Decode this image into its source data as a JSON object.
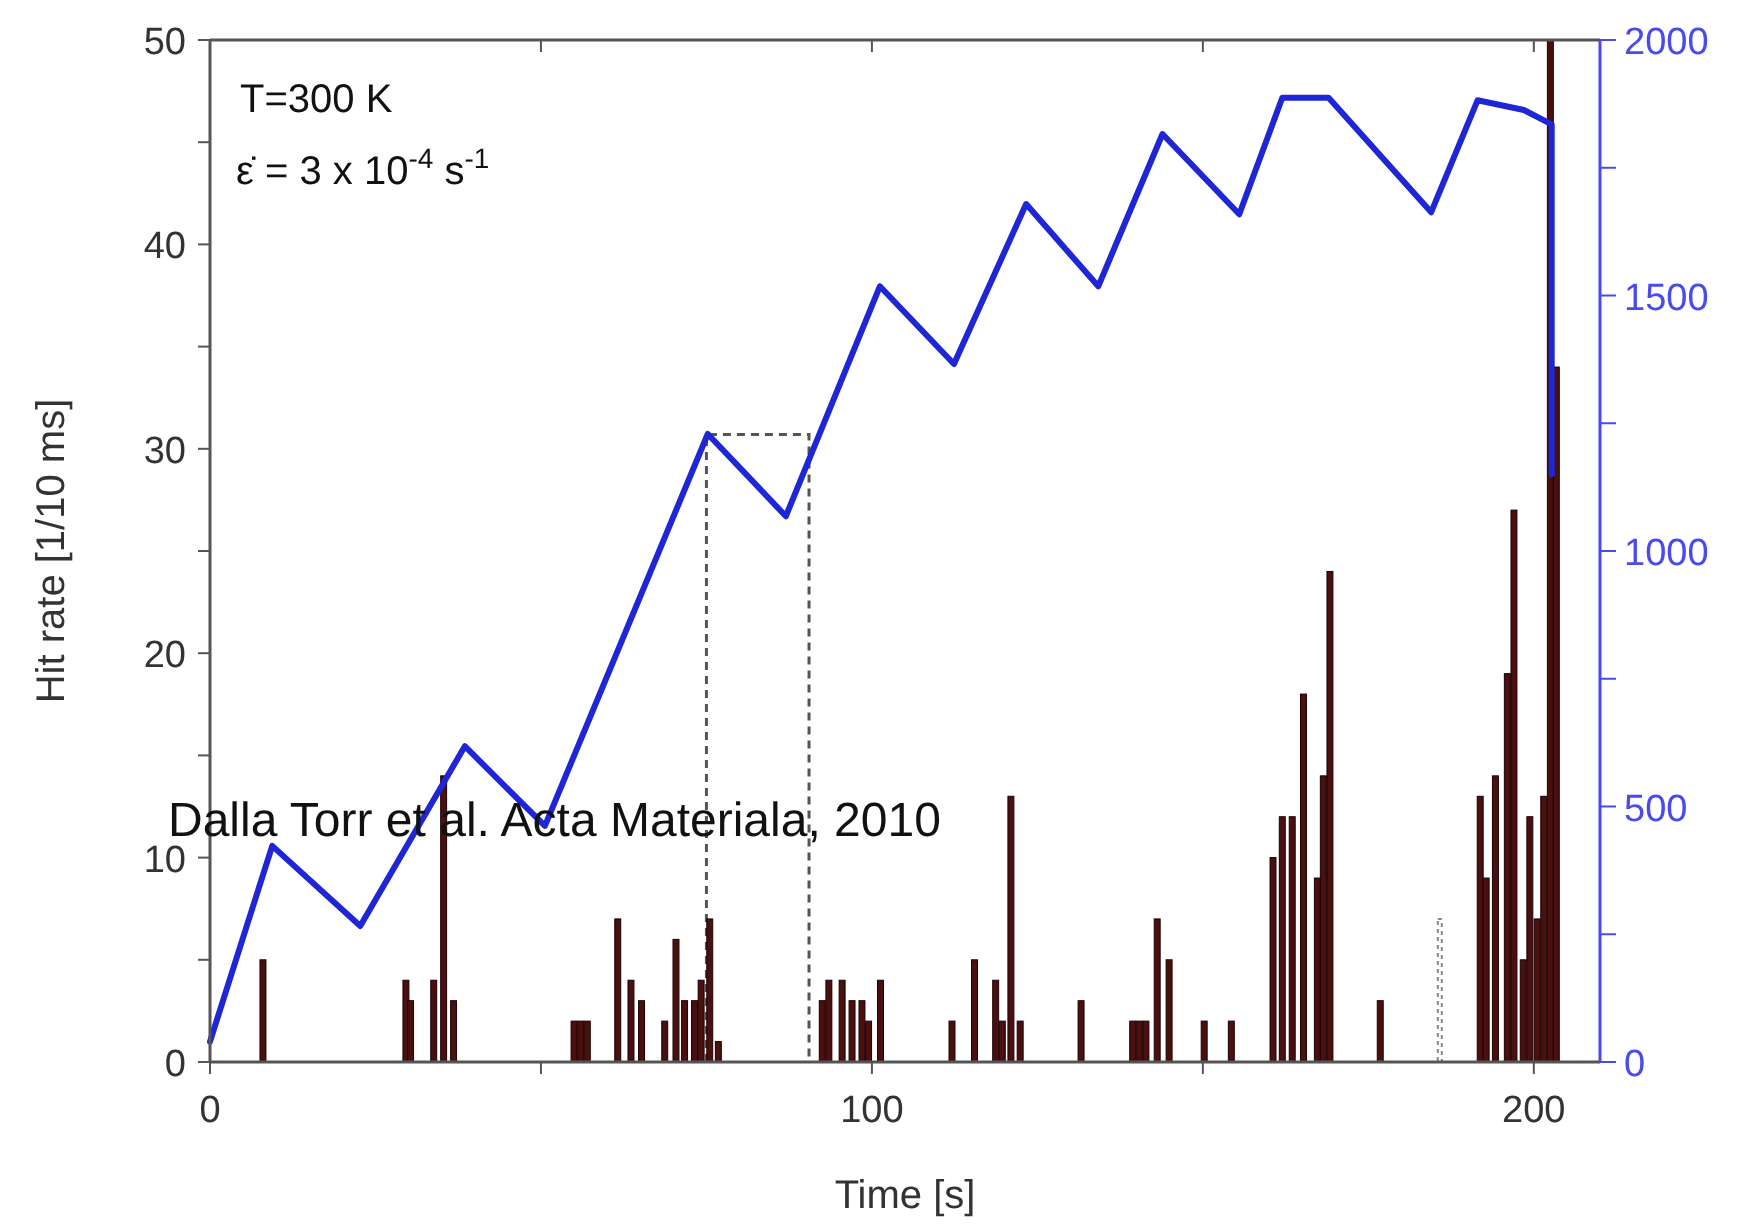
{
  "chart_data": {
    "type": "bar",
    "xlabel": "Time [s]",
    "ylabel": "Hit rate [1/10 ms]",
    "xlim": [
      0,
      210
    ],
    "xticks": [
      0,
      {
        "value": 50,
        "label": null
      },
      100,
      {
        "value": 150,
        "label": null
      },
      200
    ],
    "ylim": [
      0,
      50
    ],
    "yticks": [
      0,
      {
        "value": 5,
        "label": null
      },
      10,
      {
        "value": 15,
        "label": null
      },
      20,
      {
        "value": 25,
        "label": null
      },
      30,
      {
        "value": 35,
        "label": null
      },
      40,
      {
        "value": 45,
        "label": null
      },
      50
    ],
    "y2lim": [
      0,
      2000
    ],
    "y2ticks": [
      0,
      {
        "value": 250,
        "label": null
      },
      500,
      {
        "value": 750,
        "label": null
      },
      1000,
      {
        "value": 1250,
        "label": null
      },
      1500,
      {
        "value": 1750,
        "label": null
      },
      2000
    ],
    "grid": false,
    "series": [
      {
        "color": "#4a1010",
        "x": [
          8,
          29.6,
          30.3,
          33.8,
          35.3,
          36.8,
          55,
          56,
          57,
          61.6,
          63.6,
          65.2,
          68.7,
          70.4,
          71.7,
          73.2,
          74.2,
          75.5,
          76.8,
          92.5,
          93.5,
          95.5,
          97,
          98.5,
          99.5,
          101.3,
          112.1,
          115.5,
          118.7,
          119.7,
          121,
          122.4,
          131.6,
          139.4,
          140.4,
          141.4,
          143.1,
          144.9,
          150.2,
          154.3,
          160.6,
          162,
          163.5,
          165.2,
          167.3,
          168.2,
          169.2,
          176.8,
          191.9,
          192.8,
          194.2,
          196,
          197,
          198.4,
          199.4,
          200.5,
          201.5,
          202.5,
          203.4
        ],
        "values": [
          5,
          4,
          3,
          4,
          14,
          3,
          2,
          2,
          2,
          7,
          4,
          3,
          2,
          6,
          3,
          3,
          4,
          7,
          1,
          3,
          4,
          4,
          3,
          3,
          2,
          4,
          2,
          5,
          4,
          2,
          13,
          2,
          3,
          2,
          2,
          2,
          7,
          5,
          2,
          2,
          10,
          12,
          12,
          18,
          9,
          14,
          24,
          3,
          13,
          9,
          14,
          19,
          27,
          5,
          12,
          7,
          13,
          50,
          34
        ]
      },
      {
        "type": "bar",
        "color": "#888888",
        "line_style": "dotted",
        "x": [
          185.8
        ],
        "values": [
          7
        ]
      },
      {
        "type": "line",
        "axis": "y2",
        "color": "#1f26d6",
        "x": [
          0,
          9.4,
          22.7,
          38.5,
          50.6,
          75.2,
          87,
          101.2,
          112.4,
          123.3,
          134.2,
          143.9,
          155.5,
          162,
          169,
          184.5,
          191.5,
          198.5,
          202.7,
          202.7
        ],
        "values": [
          40,
          423,
          266,
          618,
          462,
          1229,
          1068,
          1518,
          1366,
          1679,
          1518,
          1816,
          1659,
          1887,
          1887,
          1663,
          1882,
          1863,
          1835,
          1150
        ]
      }
    ],
    "annotations": [
      "T=300 K",
      "ε̇ = 3 x 10$^{-4}$ s$^{-1}$",
      "Dalla Torr et al. Acta Materiala, 2010"
    ]
  }
}
